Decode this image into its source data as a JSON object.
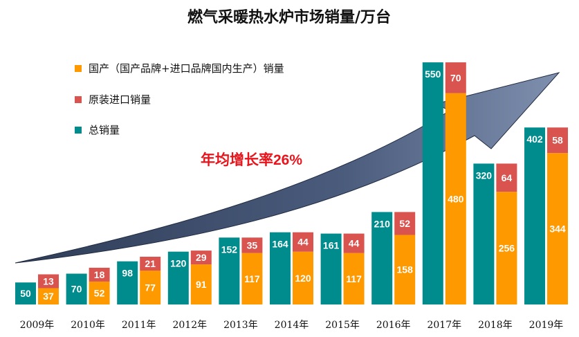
{
  "chart_data": {
    "type": "bar",
    "title": "燃气采暖热水炉市场销量/万台",
    "categories": [
      "2009年",
      "2010年",
      "2011年",
      "2012年",
      "2013年",
      "2014年",
      "2015年",
      "2016年",
      "2017年",
      "2018年",
      "2019年"
    ],
    "series": [
      {
        "name": "总销量",
        "color": "#008c8c",
        "values": [
          50,
          70,
          98,
          120,
          152,
          164,
          161,
          210,
          550,
          320,
          402
        ]
      },
      {
        "name": "国产（国产品牌+进口品牌国内生产）销量",
        "color": "#ff9900",
        "values": [
          37,
          52,
          77,
          91,
          117,
          120,
          117,
          158,
          480,
          256,
          344
        ]
      },
      {
        "name": "原装进口销量",
        "color": "#d9534f",
        "values": [
          13,
          18,
          21,
          29,
          35,
          44,
          44,
          52,
          70,
          64,
          58
        ]
      }
    ],
    "annotation": "年均增长率26%",
    "ylim": [
      0,
      580
    ],
    "grid": false,
    "legend_position": "top-left"
  }
}
